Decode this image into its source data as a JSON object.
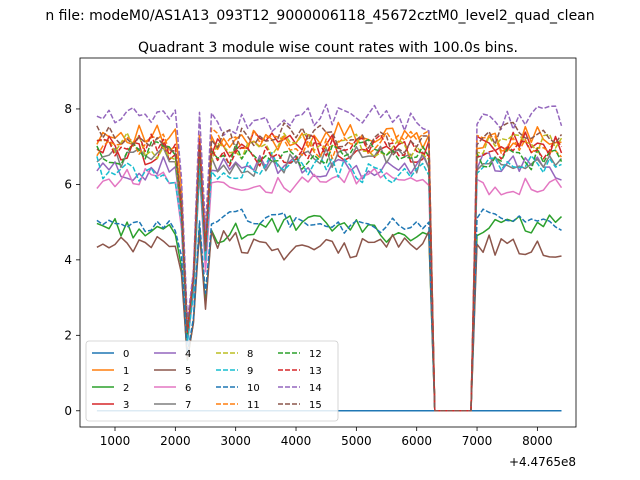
{
  "chart_data": {
    "type": "line",
    "suptitle": "n file: modeM0/AS1A13_093T12_9000006118_45672cztM0_level2_quad_clean",
    "title": "Quadrant 3 module wise count rates with 100.0s bins.",
    "xlabel": "",
    "ylabel": "",
    "x_offset_label": "+4.4765e8",
    "xlim": [
      420,
      8640
    ],
    "ylim": [
      -0.43,
      9.35
    ],
    "xticks": [
      1000,
      2000,
      3000,
      4000,
      5000,
      6000,
      7000,
      8000
    ],
    "xtick_labels": [
      "1000",
      "2000",
      "3000",
      "4000",
      "5000",
      "6000",
      "7000",
      "8000"
    ],
    "yticks": [
      0,
      2,
      4,
      6,
      8
    ],
    "ytick_labels": [
      "0",
      "2",
      "4",
      "6",
      "8"
    ],
    "x_start": 700,
    "x_step": 100,
    "n_points": 78,
    "gaps": [
      [
        6250,
        6950
      ]
    ],
    "dips": [
      [
        2100,
        0.8
      ],
      [
        2200,
        0.3
      ],
      [
        2300,
        0.5
      ],
      [
        2500,
        0.62
      ]
    ],
    "grid": false,
    "legend": {
      "placement": "lower-left",
      "columns": 4
    },
    "series": [
      {
        "name": "0",
        "color": "#1f77b4",
        "dash": false,
        "base": 0,
        "amplitude": 0
      },
      {
        "name": "1",
        "color": "#ff7f0e",
        "dash": false,
        "base": 7.2,
        "amplitude": 0.3
      },
      {
        "name": "2",
        "color": "#2ca02c",
        "dash": false,
        "base": 4.8,
        "amplitude": 0.25
      },
      {
        "name": "3",
        "color": "#d62728",
        "dash": false,
        "base": 7.0,
        "amplitude": 0.35
      },
      {
        "name": "4",
        "color": "#9467bd",
        "dash": false,
        "base": 6.5,
        "amplitude": 0.3
      },
      {
        "name": "5",
        "color": "#8c564b",
        "dash": false,
        "base": 4.4,
        "amplitude": 0.3
      },
      {
        "name": "6",
        "color": "#e377c2",
        "dash": false,
        "base": 6.1,
        "amplitude": 0.25
      },
      {
        "name": "7",
        "color": "#7f7f7f",
        "dash": false,
        "base": 6.6,
        "amplitude": 0.3
      },
      {
        "name": "8",
        "color": "#bcbd22",
        "dash": true,
        "base": 7.0,
        "amplitude": 0.3
      },
      {
        "name": "9",
        "color": "#17becf",
        "dash": true,
        "base": 6.4,
        "amplitude": 0.3
      },
      {
        "name": "10",
        "color": "#1f77b4",
        "dash": true,
        "base": 5.0,
        "amplitude": 0.2
      },
      {
        "name": "11",
        "color": "#ff7f0e",
        "dash": true,
        "base": 7.1,
        "amplitude": 0.3
      },
      {
        "name": "12",
        "color": "#2ca02c",
        "dash": true,
        "base": 6.8,
        "amplitude": 0.3
      },
      {
        "name": "13",
        "color": "#d62728",
        "dash": true,
        "base": 6.9,
        "amplitude": 0.3
      },
      {
        "name": "14",
        "color": "#9467bd",
        "dash": true,
        "base": 7.7,
        "amplitude": 0.35
      },
      {
        "name": "15",
        "color": "#8c564b",
        "dash": true,
        "base": 7.2,
        "amplitude": 0.3
      }
    ]
  }
}
